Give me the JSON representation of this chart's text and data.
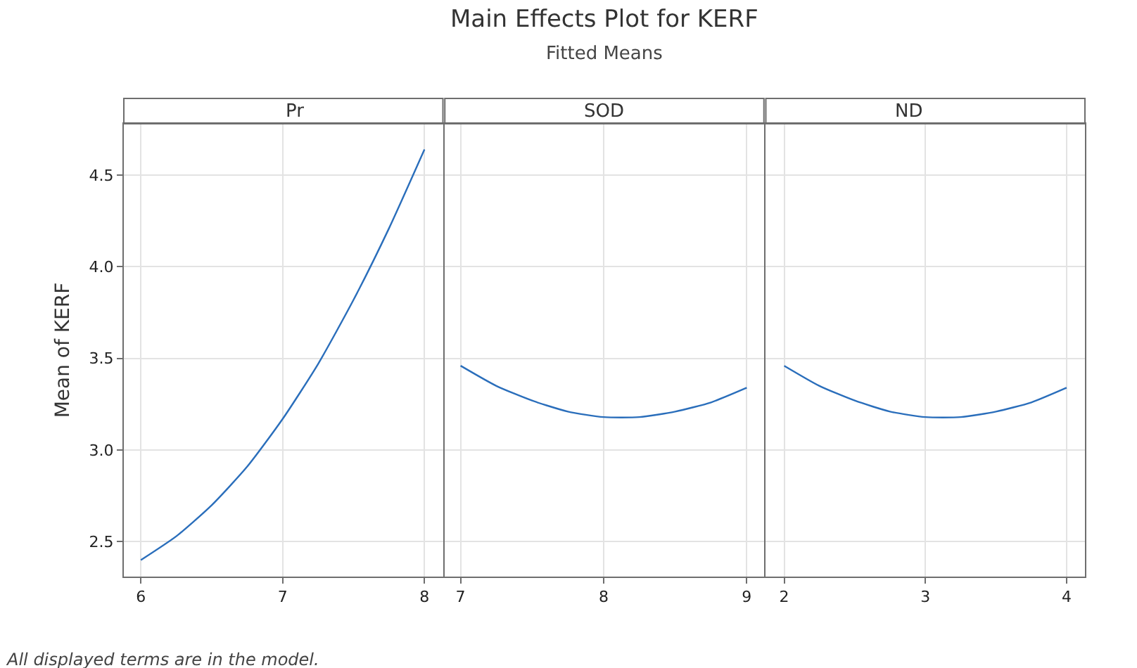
{
  "chart_data": [
    {
      "type": "line",
      "xlabel": "Pr",
      "ylabel": "Mean of KERF",
      "annotations": [
        "All displayed terms are in the model."
      ],
      "grid": true,
      "marker": "none",
      "line_style": "solid",
      "xlim": [
        5.88,
        8.13
      ],
      "xticks": [
        6,
        7,
        8
      ],
      "ylim": [
        2.31,
        4.78
      ],
      "yticks": [
        2.5,
        {
          "value": 3,
          "label": "3.0"
        },
        3.5,
        {
          "value": 4,
          "label": "4.0"
        },
        4.5
      ],
      "series": [
        {
          "color": "#2a6ebb",
          "x": [
            6,
            6.25,
            6.5,
            6.75,
            7,
            7.25,
            7.5,
            7.75,
            8
          ],
          "values": [
            2.4,
            2.53,
            2.7,
            2.91,
            3.17,
            3.47,
            3.82,
            4.21,
            4.64
          ]
        }
      ]
    },
    {
      "type": "line",
      "title": "Main Effects Plot for KERF",
      "subtitle": "Fitted Means",
      "xlabel": "SOD",
      "grid": true,
      "marker": "none",
      "line_style": "solid",
      "tick_labels": "x",
      "xlim": [
        6.89,
        9.12
      ],
      "xticks": [
        7,
        8,
        9
      ],
      "ylim": [
        2.31,
        4.78
      ],
      "series": [
        {
          "color": "#2a6ebb",
          "x": [
            7,
            7.25,
            7.5,
            7.75,
            8,
            8.25,
            8.5,
            8.75,
            9
          ],
          "values": [
            3.46,
            3.35,
            3.27,
            3.21,
            3.18,
            3.18,
            3.21,
            3.26,
            3.34
          ]
        }
      ]
    },
    {
      "type": "line",
      "xlabel": "ND",
      "grid": true,
      "marker": "none",
      "line_style": "solid",
      "tick_labels": "x",
      "xlim": [
        1.87,
        4.13
      ],
      "xticks": [
        2,
        3,
        4
      ],
      "ylim": [
        2.31,
        4.78
      ],
      "series": [
        {
          "color": "#2a6ebb",
          "x": [
            2,
            2.25,
            2.5,
            2.75,
            3,
            3.25,
            3.5,
            3.75,
            4
          ],
          "values": [
            3.46,
            3.35,
            3.27,
            3.21,
            3.18,
            3.18,
            3.21,
            3.26,
            3.34
          ]
        }
      ]
    }
  ]
}
